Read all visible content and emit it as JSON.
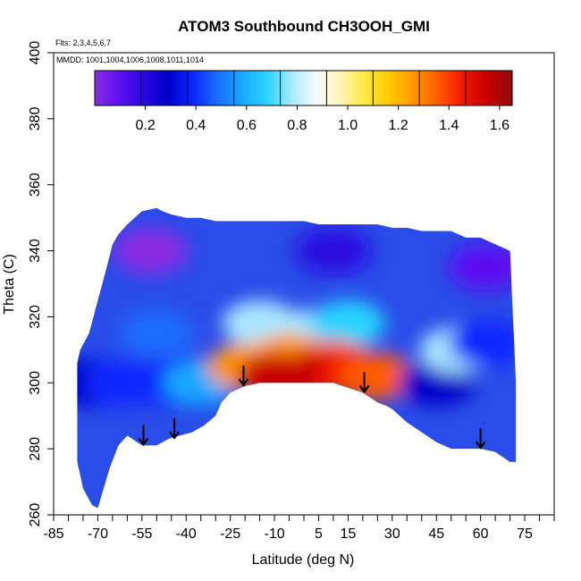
{
  "chart_data": {
    "type": "heatmap",
    "title": "ATOM3 Southbound CH3OOH_GMI",
    "annotations": [
      "Flts: 2,3,4,5,6,7",
      "MMDD: 1001,1004,1006,1008,1011,1014"
    ],
    "xlabel": "Latitude (deg N)",
    "ylabel": "Theta (C)",
    "xlim": [
      -85,
      85
    ],
    "ylim": [
      260,
      400
    ],
    "x_tick_values": [
      -85,
      -80,
      -75,
      -70,
      -65,
      -60,
      -55,
      -50,
      -45,
      -40,
      -35,
      -30,
      -25,
      -20,
      -15,
      -10,
      -5,
      0,
      5,
      10,
      15,
      20,
      25,
      30,
      35,
      40,
      45,
      50,
      55,
      60,
      65,
      70,
      75,
      80,
      85
    ],
    "x_tick_labels": [
      "-85",
      "-70",
      "-55",
      "-40",
      "-25",
      "-10",
      "5",
      "15",
      "30",
      "45",
      "60",
      "75"
    ],
    "x_tick_label_values": [
      -85,
      -70,
      -55,
      -40,
      -25,
      -10,
      5,
      15,
      30,
      45,
      60,
      75
    ],
    "y_ticks": [
      260,
      280,
      300,
      320,
      340,
      360,
      380,
      400
    ],
    "y_tick_labels": [
      "260",
      "280",
      "300",
      "320",
      "340",
      "360",
      "380",
      "400"
    ],
    "colorbar": {
      "range": [
        0,
        1.65
      ],
      "tick_values": [
        0.2,
        0.4,
        0.6,
        0.8,
        1.0,
        1.2,
        1.4,
        1.6
      ],
      "tick_labels": [
        "0.2",
        "0.4",
        "0.6",
        "0.8",
        "1.0",
        "1.2",
        "1.4",
        "1.6"
      ],
      "colors": [
        "#8a2be2",
        "#5b10f0",
        "#2a08e0",
        "#0000c8",
        "#0a28ff",
        "#1a6cff",
        "#18a8ff",
        "#28d4ff",
        "#a8e8ff",
        "#f4fbff",
        "#fff6b8",
        "#ffe840",
        "#ffc800",
        "#ff9600",
        "#ff5a00",
        "#f01800",
        "#c80000",
        "#8c0c0c"
      ]
    },
    "domain_bottom": [
      [
        -77,
        276
      ],
      [
        -75,
        268
      ],
      [
        -72,
        263
      ],
      [
        -70,
        262
      ],
      [
        -68,
        268
      ],
      [
        -66,
        274
      ],
      [
        -63,
        281
      ],
      [
        -60,
        284
      ],
      [
        -55,
        281
      ],
      [
        -50,
        281
      ],
      [
        -46,
        283
      ],
      [
        -42,
        284
      ],
      [
        -38,
        285
      ],
      [
        -34,
        287
      ],
      [
        -30,
        290
      ],
      [
        -28,
        294
      ],
      [
        -25,
        297
      ],
      [
        -20,
        299
      ],
      [
        -15,
        300
      ],
      [
        -10,
        300
      ],
      [
        0,
        300
      ],
      [
        10,
        300
      ],
      [
        20,
        297
      ],
      [
        25,
        294
      ],
      [
        28,
        293
      ],
      [
        30,
        292
      ],
      [
        35,
        288
      ],
      [
        40,
        285
      ],
      [
        45,
        282
      ],
      [
        50,
        280
      ],
      [
        55,
        280
      ],
      [
        60,
        280
      ],
      [
        65,
        279
      ],
      [
        70,
        276
      ],
      [
        72,
        276
      ]
    ],
    "domain_top": [
      [
        72,
        276
      ],
      [
        72,
        300
      ],
      [
        71,
        320
      ],
      [
        70,
        340
      ],
      [
        65,
        342
      ],
      [
        60,
        344
      ],
      [
        55,
        344
      ],
      [
        50,
        346
      ],
      [
        45,
        346
      ],
      [
        40,
        346
      ],
      [
        35,
        347
      ],
      [
        30,
        347
      ],
      [
        25,
        348
      ],
      [
        20,
        348
      ],
      [
        15,
        348
      ],
      [
        10,
        348
      ],
      [
        5,
        348
      ],
      [
        0,
        349
      ],
      [
        -5,
        349
      ],
      [
        -10,
        349
      ],
      [
        -15,
        349
      ],
      [
        -20,
        349
      ],
      [
        -25,
        349
      ],
      [
        -30,
        349
      ],
      [
        -35,
        350
      ],
      [
        -40,
        350
      ],
      [
        -45,
        351
      ],
      [
        -48,
        352
      ],
      [
        -50,
        353
      ],
      [
        -55,
        352
      ],
      [
        -60,
        348
      ],
      [
        -63,
        345
      ],
      [
        -65,
        342
      ],
      [
        -67,
        335
      ],
      [
        -70,
        325
      ],
      [
        -73,
        315
      ],
      [
        -76,
        310
      ],
      [
        -77,
        306
      ],
      [
        -77,
        276
      ]
    ],
    "features": [
      {
        "lat": -72,
        "theta": 300,
        "value": 0.35
      },
      {
        "lat": -62,
        "theta": 300,
        "value": 0.45
      },
      {
        "lat": -50,
        "theta": 315,
        "value": 0.5
      },
      {
        "lat": -45,
        "theta": 300,
        "value": 0.4
      },
      {
        "lat": -35,
        "theta": 300,
        "value": 0.6
      },
      {
        "lat": -15,
        "theta": 318,
        "value": 0.75
      },
      {
        "lat": 0,
        "theta": 315,
        "value": 0.8
      },
      {
        "lat": 15,
        "theta": 318,
        "value": 0.7
      },
      {
        "lat": -20,
        "theta": 305,
        "value": 1.2
      },
      {
        "lat": -5,
        "theta": 308,
        "value": 1.25
      },
      {
        "lat": 10,
        "theta": 306,
        "value": 1.3
      },
      {
        "lat": -10,
        "theta": 302,
        "value": 1.5
      },
      {
        "lat": 5,
        "theta": 303,
        "value": 1.5
      },
      {
        "lat": 17,
        "theta": 303,
        "value": 1.45
      },
      {
        "lat": 25,
        "theta": 302,
        "value": 1.3
      },
      {
        "lat": 45,
        "theta": 300,
        "value": 0.35
      },
      {
        "lat": 52,
        "theta": 310,
        "value": 0.75
      },
      {
        "lat": 62,
        "theta": 312,
        "value": 0.45
      },
      {
        "lat": -52,
        "theta": 340,
        "value": 0.05
      },
      {
        "lat": 10,
        "theta": 340,
        "value": 0.2
      },
      {
        "lat": 62,
        "theta": 335,
        "value": 0.1
      }
    ],
    "arrows_at_latitude": [
      -54.5,
      -44,
      -20.5,
      20.5,
      60
    ]
  }
}
